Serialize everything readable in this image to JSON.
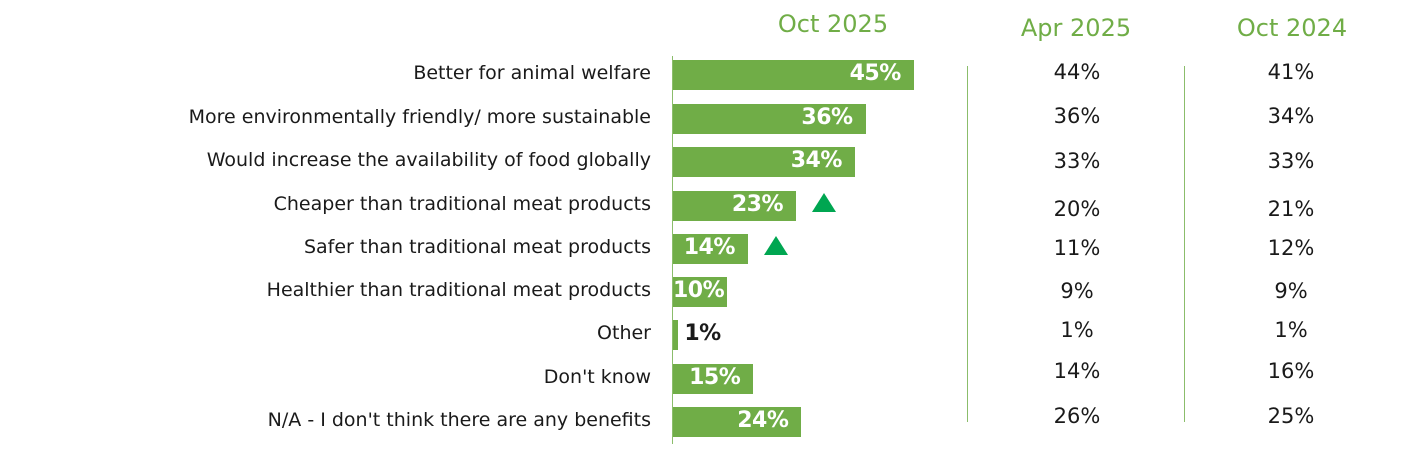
{
  "columns": {
    "current": "Oct 2025",
    "prev1": "Apr 2025",
    "prev2": "Oct 2024"
  },
  "colors": {
    "bar": "#70ad47",
    "accent": "#70ad47",
    "up_arrow": "#00a651",
    "text": "#1a1a1a"
  },
  "chart_data": {
    "type": "bar",
    "orientation": "horizontal",
    "categories": [
      "Better for animal welfare",
      "More environmentally friendly/ more sustainable",
      "Would increase the availability of food globally",
      "Cheaper than traditional meat products",
      "Safer than traditional meat products",
      "Healthier than traditional meat products",
      "Other",
      "Don't know",
      "N/A - I don't think there are any benefits"
    ],
    "series": [
      {
        "name": "Oct 2025",
        "values": [
          45,
          36,
          34,
          23,
          14,
          10,
          1,
          15,
          24
        ]
      },
      {
        "name": "Apr 2025",
        "values": [
          44,
          36,
          33,
          20,
          11,
          9,
          1,
          14,
          26
        ]
      },
      {
        "name": "Oct 2024",
        "values": [
          41,
          34,
          33,
          21,
          12,
          9,
          1,
          16,
          25
        ]
      }
    ],
    "value_labels": [
      "45%",
      "36%",
      "34%",
      "23%",
      "14%",
      "10%",
      "1%",
      "15%",
      "24%"
    ],
    "prev1_labels": [
      "44%",
      "36%",
      "33%",
      "20%",
      "11%",
      "9%",
      "1%",
      "14%",
      "26%"
    ],
    "prev2_labels": [
      "41%",
      "34%",
      "33%",
      "21%",
      "12%",
      "9%",
      "1%",
      "16%",
      "25%"
    ],
    "significant_increase": [
      false,
      false,
      false,
      true,
      true,
      false,
      false,
      false,
      false
    ],
    "xlim": [
      0,
      100
    ]
  }
}
